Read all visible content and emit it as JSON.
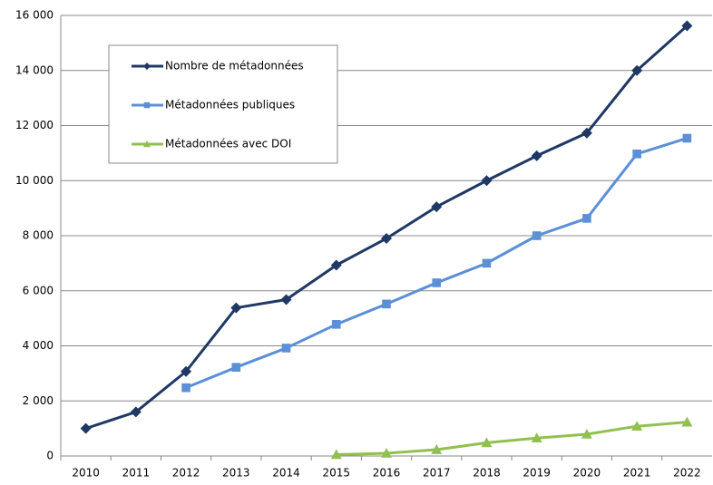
{
  "chart_data": {
    "type": "line",
    "categories": [
      "2010",
      "2011",
      "2012",
      "2013",
      "2014",
      "2015",
      "2016",
      "2017",
      "2018",
      "2019",
      "2020",
      "2021",
      "2022"
    ],
    "series": [
      {
        "name": "Nombre de métadonnées",
        "color": "#1f3864",
        "marker": "diamond",
        "values": [
          1000,
          1600,
          3070,
          5380,
          5680,
          6930,
          7900,
          9050,
          10000,
          10900,
          11730,
          14000,
          15620
        ]
      },
      {
        "name": "Métadonnées publiques",
        "color": "#5b8fd6",
        "marker": "square",
        "values": [
          null,
          null,
          2480,
          3220,
          3920,
          4780,
          5520,
          6290,
          7000,
          8000,
          8630,
          10970,
          11540
        ]
      },
      {
        "name": "Métadonnées avec DOI",
        "color": "#92c050",
        "marker": "triangle",
        "values": [
          null,
          null,
          null,
          null,
          null,
          50,
          100,
          230,
          480,
          650,
          790,
          1080,
          1230
        ]
      }
    ],
    "ylim": [
      0,
      16000
    ],
    "yticks": [
      0,
      {
        "value": 2000,
        "label": "2 000"
      },
      {
        "value": 4000,
        "label": "4 000"
      },
      {
        "value": 6000,
        "label": "6 000"
      },
      {
        "value": 8000,
        "label": "8 000"
      },
      {
        "value": 10000,
        "label": "10 000"
      },
      {
        "value": 12000,
        "label": "12 000"
      },
      {
        "value": 14000,
        "label": "14 000"
      },
      {
        "value": 16000,
        "label": "16 000"
      }
    ],
    "grid": true,
    "legend": "upper left"
  }
}
